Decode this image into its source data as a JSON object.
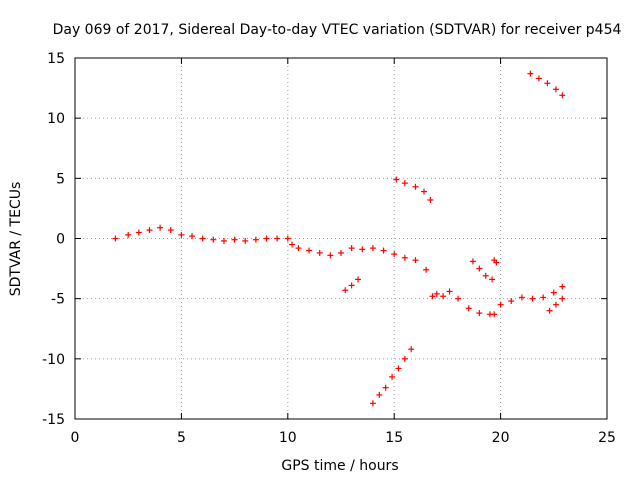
{
  "chart_data": {
    "type": "scatter",
    "title": "Day 069 of 2017, Sidereal Day-to-day VTEC variation (SDTVAR) for receiver p454",
    "xlabel": "GPS time / hours",
    "ylabel": "SDTVAR / TECUs",
    "xlim": [
      0,
      25
    ],
    "ylim": [
      -15,
      15
    ],
    "x_ticks": [
      "0",
      "5",
      "10",
      "15",
      "20",
      "25"
    ],
    "y_ticks": [
      "-15",
      "-10",
      "-5",
      "0",
      "5",
      "10",
      "15"
    ],
    "x_tick_values": [
      0,
      5,
      10,
      15,
      20,
      25
    ],
    "y_tick_values": [
      -15,
      -10,
      -5,
      0,
      5,
      10,
      15
    ],
    "grid": true,
    "legend": "none",
    "marker": "plus",
    "color": "#ff0000",
    "series": [
      {
        "segments": [
          {
            "x": [
              1.9,
              2.5,
              3.0,
              3.5,
              4.0,
              4.5,
              5.0,
              5.5,
              6.0,
              6.5,
              7.0,
              7.5,
              8.0,
              8.5,
              9.0,
              9.5,
              10.0
            ],
            "y": [
              0.0,
              0.3,
              0.5,
              0.7,
              0.9,
              0.7,
              0.3,
              0.2,
              0.0,
              -0.1,
              -0.2,
              -0.1,
              -0.2,
              -0.1,
              0.0,
              0.0,
              0.0
            ]
          },
          {
            "x": [
              10.2,
              10.5,
              11.0,
              11.5,
              12.0,
              12.5,
              13.0,
              13.5,
              14.0,
              14.5,
              15.0,
              15.5,
              16.0,
              16.5
            ],
            "y": [
              -0.5,
              -0.8,
              -1.0,
              -1.2,
              -1.4,
              -1.2,
              -0.8,
              -0.9,
              -0.8,
              -1.0,
              -1.3,
              -1.6,
              -1.8,
              -2.6
            ]
          },
          {
            "x": [
              12.7,
              13.0,
              13.3
            ],
            "y": [
              -4.3,
              -3.9,
              -3.4
            ]
          },
          {
            "x": [
              14.0,
              14.3,
              14.6,
              14.9,
              15.2,
              15.5,
              15.8
            ],
            "y": [
              -13.7,
              -13.0,
              -12.4,
              -11.5,
              -10.8,
              -10.0,
              -9.2
            ]
          },
          {
            "x": [
              15.1,
              15.5,
              16.0,
              16.4,
              16.7
            ],
            "y": [
              4.9,
              4.6,
              4.3,
              3.9,
              3.2
            ]
          },
          {
            "x": [
              16.8,
              17.0,
              17.3,
              17.6,
              18.0,
              18.5,
              19.0,
              19.5,
              19.7
            ],
            "y": [
              -4.8,
              -4.6,
              -4.8,
              -4.4,
              -5.0,
              -5.8,
              -6.2,
              -6.3,
              -6.3
            ]
          },
          {
            "x": [
              18.7,
              19.0,
              19.3,
              19.6
            ],
            "y": [
              -1.9,
              -2.5,
              -3.1,
              -3.4
            ]
          },
          {
            "x": [
              19.7,
              19.8
            ],
            "y": [
              -1.8,
              -2.0
            ]
          },
          {
            "x": [
              20.0,
              20.5,
              21.0,
              21.5,
              22.0,
              22.5,
              22.9
            ],
            "y": [
              -5.5,
              -5.2,
              -4.9,
              -5.0,
              -4.9,
              -4.5,
              -4.0
            ]
          },
          {
            "x": [
              22.3,
              22.6,
              22.9
            ],
            "y": [
              -6.0,
              -5.5,
              -5.0
            ]
          },
          {
            "x": [
              21.4,
              21.8,
              22.2,
              22.6,
              22.9
            ],
            "y": [
              13.7,
              13.3,
              12.9,
              12.4,
              11.9
            ]
          }
        ]
      }
    ]
  }
}
